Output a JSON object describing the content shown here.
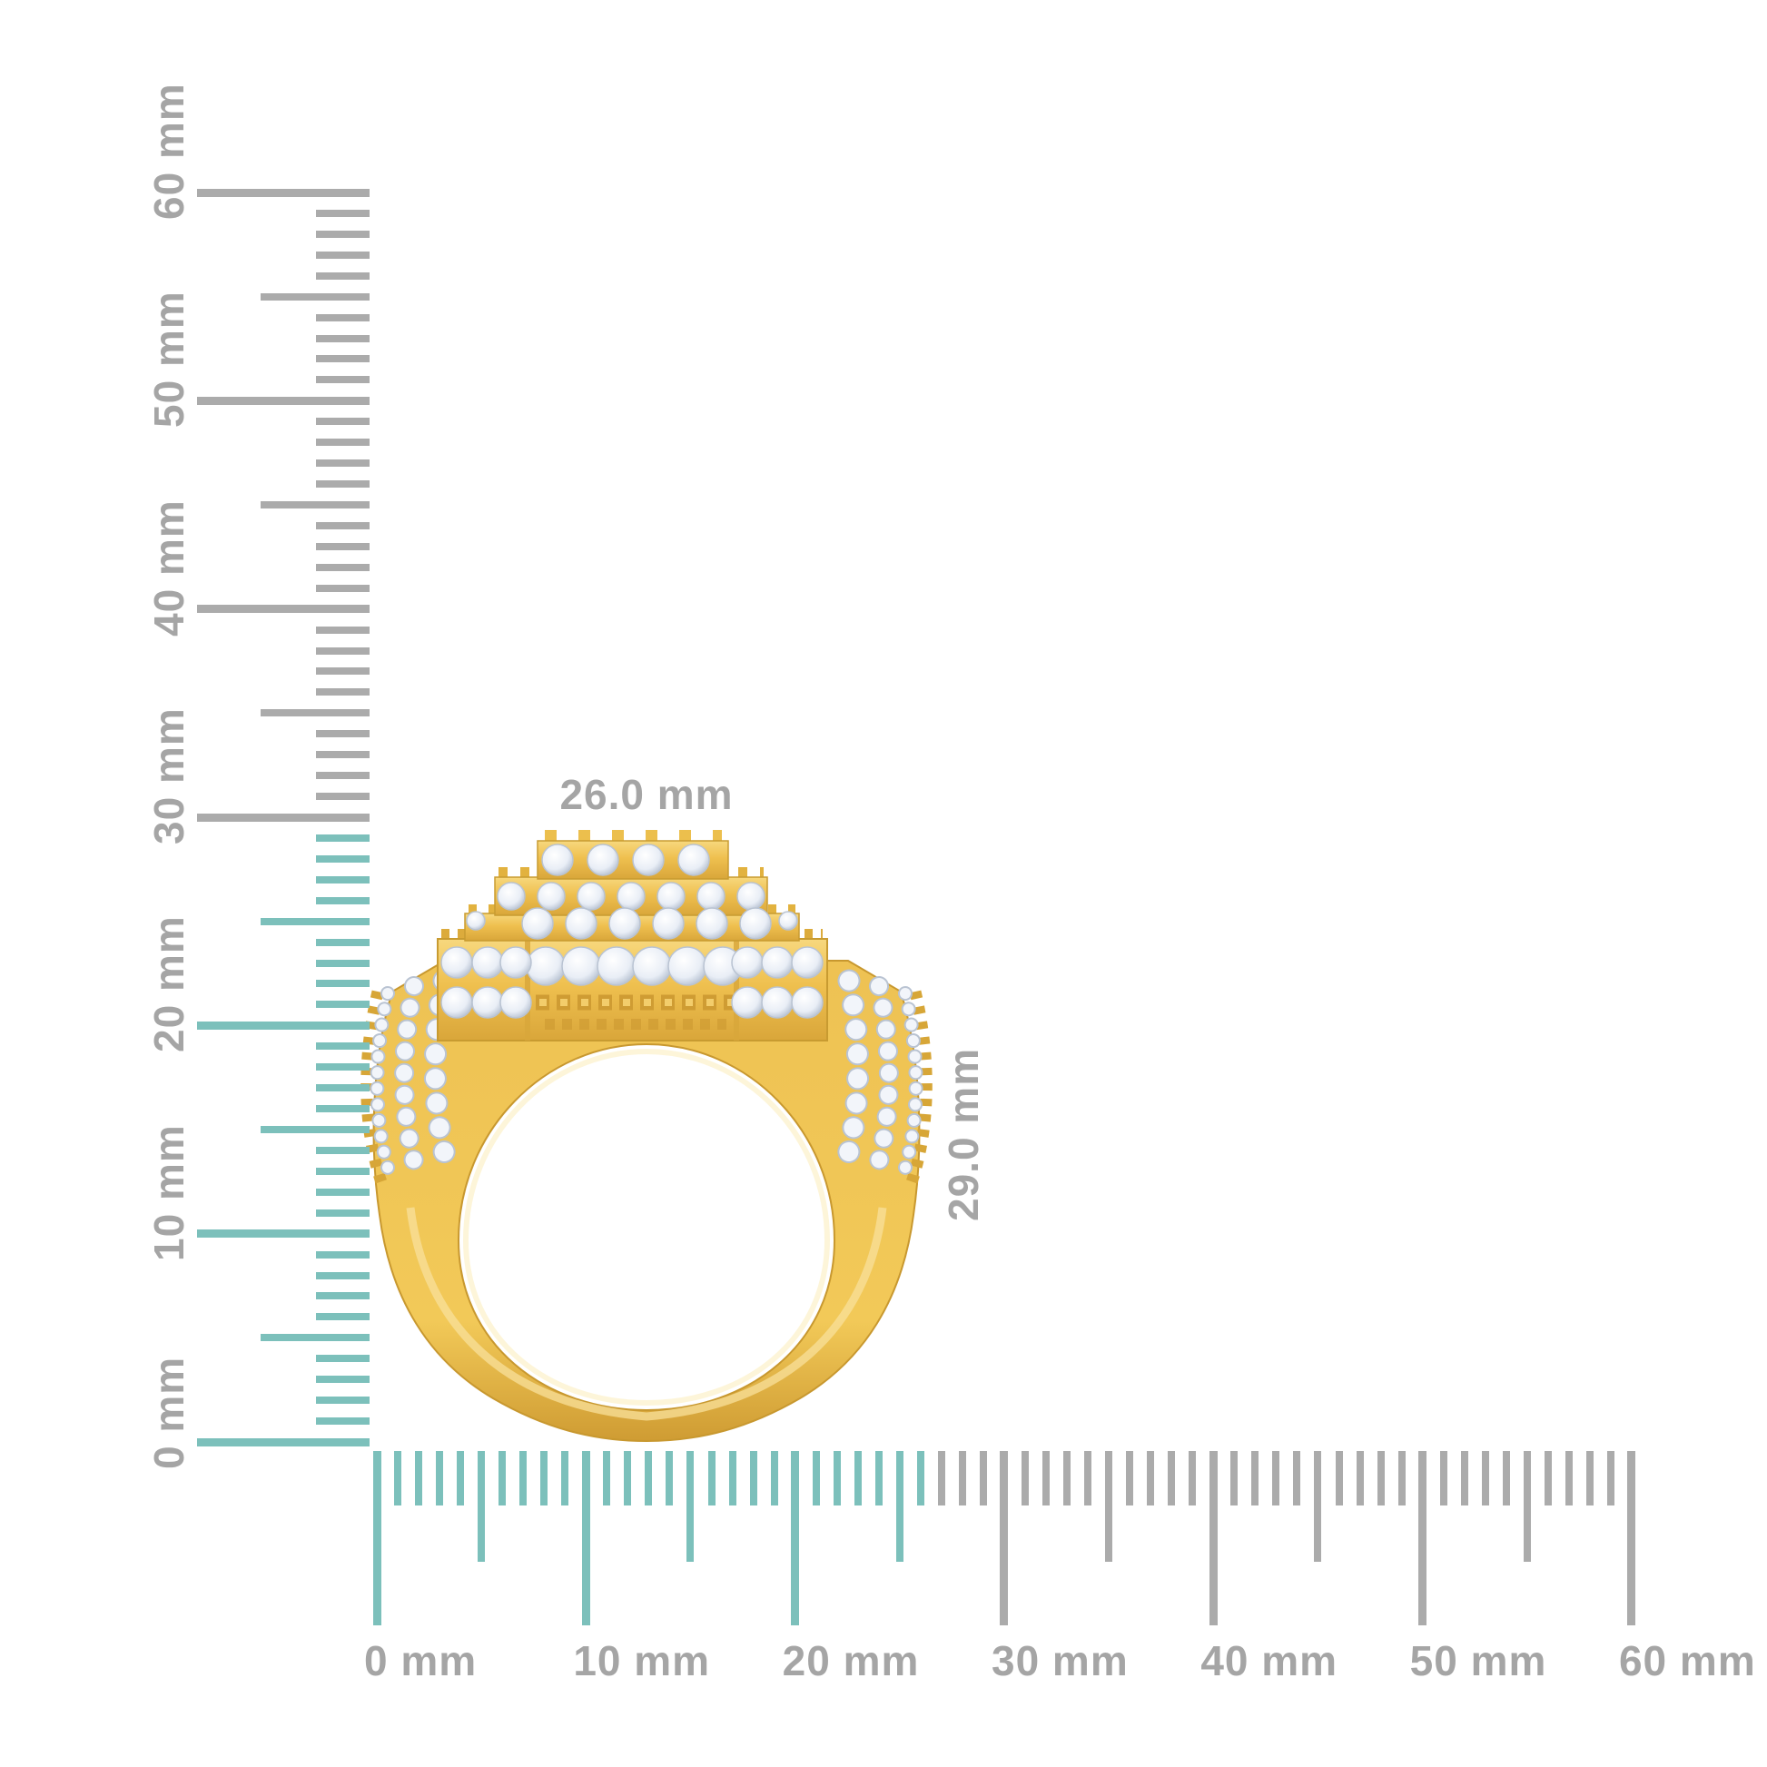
{
  "page": {
    "background": "#ffffff",
    "description": "Yellow-gold pave diamond ring, side profile, shown against millimeter measurement rulers"
  },
  "colors": {
    "tick_gray": "#ababab",
    "tick_teal": "#7cc0bb",
    "label_gray": "#a5a5a5",
    "gold": "#efc04f",
    "gold_light": "#f9e2a0",
    "gold_dark": "#d09d33",
    "gold_deep": "#b5831f",
    "diamond_white": "#f2f5fa",
    "diamond_shade": "#b9c3d2"
  },
  "ring": {
    "name": "pave diamond ring",
    "width_label": "26.0 mm",
    "height_label": "29.0 mm",
    "width_mm": 26.0,
    "height_mm": 29.0
  },
  "vertical_ruler": {
    "unit": "mm",
    "min_mm": 0,
    "max_mm": 60,
    "tick_step_mm": 1,
    "medium_step_mm": 5,
    "major_step_mm": 10,
    "labels": [
      "0 mm",
      "10 mm",
      "20 mm",
      "30 mm",
      "40 mm",
      "50 mm",
      "60 mm"
    ],
    "highlighted_range_mm": [
      0,
      29
    ]
  },
  "horizontal_ruler": {
    "unit": "mm",
    "min_mm": 0,
    "max_mm": 60,
    "tick_step_mm": 1,
    "medium_step_mm": 5,
    "major_step_mm": 10,
    "labels": [
      "0 mm",
      "10 mm",
      "20 mm",
      "30 mm",
      "40 mm",
      "50 mm",
      "60 mm"
    ],
    "highlighted_range_mm": [
      0,
      26
    ]
  }
}
